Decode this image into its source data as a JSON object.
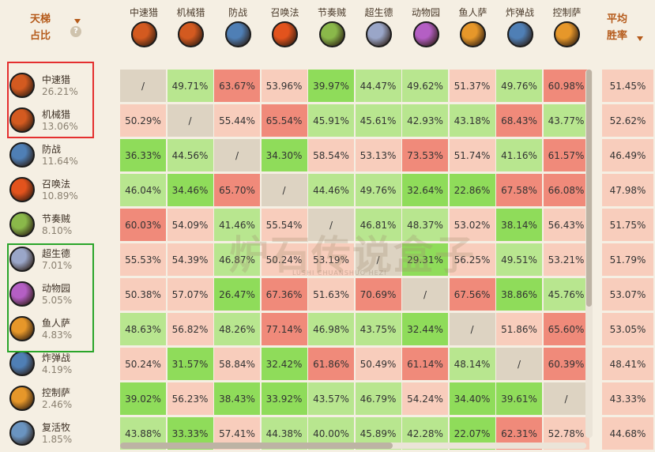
{
  "header": {
    "ladder_line1": "天梯",
    "ladder_line2": "占比",
    "help_glyph": "?",
    "avg_line1": "平均",
    "avg_line2": "胜率"
  },
  "columns": [
    {
      "label": "中速猎",
      "icon": "hunter-bow-icon",
      "color": "#d35a20"
    },
    {
      "label": "机械猎",
      "icon": "hunter-bow-icon",
      "color": "#d35a20"
    },
    {
      "label": "防战",
      "icon": "warrior-sword-icon",
      "color": "#4f7fb5"
    },
    {
      "label": "召唤法",
      "icon": "mage-fire-icon",
      "color": "#e2531d"
    },
    {
      "label": "节奏贼",
      "icon": "rogue-daggers-icon",
      "color": "#8ab84a"
    },
    {
      "label": "超生德",
      "icon": "druid-claw-icon",
      "color": "#9aa6c8"
    },
    {
      "label": "动物园",
      "icon": "warlock-zoo-icon",
      "color": "#b45fc4"
    },
    {
      "label": "鱼人萨",
      "icon": "shaman-totem-icon",
      "color": "#e6972a"
    },
    {
      "label": "炸弹战",
      "icon": "warrior-sword-icon",
      "color": "#4f7fb5"
    },
    {
      "label": "控制萨",
      "icon": "shaman-totem-icon",
      "color": "#e6972a"
    }
  ],
  "rows": [
    {
      "name": "中速猎",
      "share": "26.21%",
      "icon": "hunter-bow-icon",
      "color": "#d35a20",
      "avg": "51.45%",
      "cells": [
        "/",
        "49.71%",
        "63.67%",
        "53.96%",
        "39.97%",
        "44.47%",
        "49.62%",
        "51.37%",
        "49.76%",
        "60.98%"
      ]
    },
    {
      "name": "机械猎",
      "share": "13.06%",
      "icon": "hunter-bow-icon",
      "color": "#d35a20",
      "avg": "52.62%",
      "cells": [
        "50.29%",
        "/",
        "55.44%",
        "65.54%",
        "45.91%",
        "45.61%",
        "42.93%",
        "43.18%",
        "68.43%",
        "43.77%"
      ]
    },
    {
      "name": "防战",
      "share": "11.64%",
      "icon": "warrior-sword-icon",
      "color": "#4f7fb5",
      "avg": "46.49%",
      "cells": [
        "36.33%",
        "44.56%",
        "/",
        "34.30%",
        "58.54%",
        "53.13%",
        "73.53%",
        "51.74%",
        "41.16%",
        "61.57%"
      ]
    },
    {
      "name": "召唤法",
      "share": "10.89%",
      "icon": "mage-fire-icon",
      "color": "#e2531d",
      "avg": "47.98%",
      "cells": [
        "46.04%",
        "34.46%",
        "65.70%",
        "/",
        "44.46%",
        "49.76%",
        "32.64%",
        "22.86%",
        "67.58%",
        "66.08%"
      ]
    },
    {
      "name": "节奏贼",
      "share": "8.10%",
      "icon": "rogue-daggers-icon",
      "color": "#8ab84a",
      "avg": "51.75%",
      "cells": [
        "60.03%",
        "54.09%",
        "41.46%",
        "55.54%",
        "/",
        "46.81%",
        "48.37%",
        "53.02%",
        "38.14%",
        "56.43%"
      ]
    },
    {
      "name": "超生德",
      "share": "7.01%",
      "icon": "druid-claw-icon",
      "color": "#9aa6c8",
      "avg": "51.79%",
      "cells": [
        "55.53%",
        "54.39%",
        "46.87%",
        "50.24%",
        "53.19%",
        "/",
        "29.31%",
        "56.25%",
        "49.51%",
        "53.21%"
      ]
    },
    {
      "name": "动物园",
      "share": "5.05%",
      "icon": "warlock-zoo-icon",
      "color": "#b45fc4",
      "avg": "53.07%",
      "cells": [
        "50.38%",
        "57.07%",
        "26.47%",
        "67.36%",
        "51.63%",
        "70.69%",
        "/",
        "67.56%",
        "38.86%",
        "45.76%"
      ]
    },
    {
      "name": "鱼人萨",
      "share": "4.83%",
      "icon": "shaman-totem-icon",
      "color": "#e6972a",
      "avg": "53.05%",
      "cells": [
        "48.63%",
        "56.82%",
        "48.26%",
        "77.14%",
        "46.98%",
        "43.75%",
        "32.44%",
        "/",
        "51.86%",
        "65.60%"
      ]
    },
    {
      "name": "炸弹战",
      "share": "4.19%",
      "icon": "warrior-sword-icon",
      "color": "#4f7fb5",
      "avg": "48.41%",
      "cells": [
        "50.24%",
        "31.57%",
        "58.84%",
        "32.42%",
        "61.86%",
        "50.49%",
        "61.14%",
        "48.14%",
        "/",
        "60.39%"
      ]
    },
    {
      "name": "控制萨",
      "share": "2.46%",
      "icon": "shaman-totem-icon",
      "color": "#e6972a",
      "avg": "43.33%",
      "cells": [
        "39.02%",
        "56.23%",
        "38.43%",
        "33.92%",
        "43.57%",
        "46.79%",
        "54.24%",
        "34.40%",
        "39.61%",
        "/"
      ]
    },
    {
      "name": "复活牧",
      "share": "1.85%",
      "icon": "priest-orb-icon",
      "color": "#6a94c0",
      "avg": "44.68%",
      "cells": [
        "43.88%",
        "33.33%",
        "57.41%",
        "44.38%",
        "40.00%",
        "45.89%",
        "42.28%",
        "22.07%",
        "62.31%",
        "52.78%"
      ]
    }
  ],
  "watermark": {
    "text": "炉石传说盒子",
    "sub": "LUSHI CHUANSHUO HEZI"
  },
  "colors": {
    "strong_red": "#f08a7a",
    "light_red": "#f8cdbc",
    "light_green": "#b8e68f",
    "strong_green": "#8fdc5a",
    "diag": "#ddd3c2"
  }
}
